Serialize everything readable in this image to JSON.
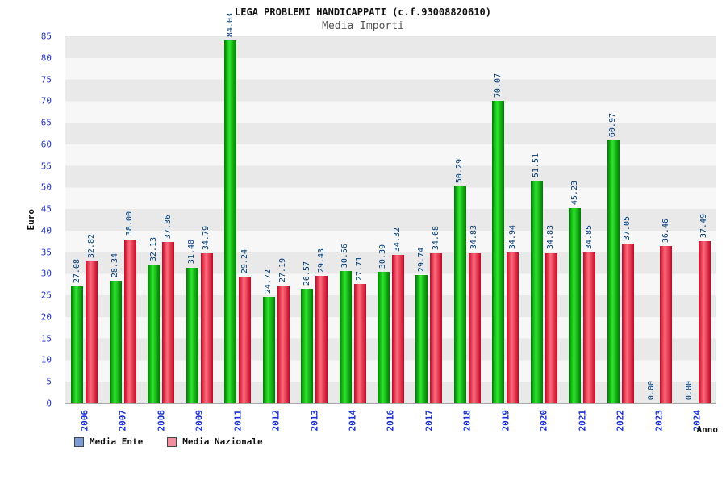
{
  "page": {
    "title": "LEGA PROBLEMI HANDICAPPATI (c.f.93008820610)",
    "subtitle": "Media Importi"
  },
  "chart_data": {
    "type": "bar",
    "title": "LEGA PROBLEMI HANDICAPPATI (c.f.93008820610)",
    "subtitle": "Media Importi",
    "xlabel": "Anno",
    "ylabel": "Euro",
    "ylim": [
      0,
      85
    ],
    "ytick_step": 5,
    "grid": "horizontal-bands",
    "legend_position": "bottom-left",
    "categories": [
      "2006",
      "2007",
      "2008",
      "2009",
      "2011",
      "2012",
      "2013",
      "2014",
      "2016",
      "2017",
      "2018",
      "2019",
      "2020",
      "2021",
      "2022",
      "2023",
      "2024"
    ],
    "series": [
      {
        "name": "Media Ente",
        "values": [
          27.08,
          28.34,
          32.13,
          31.48,
          84.03,
          24.72,
          26.57,
          30.56,
          30.39,
          29.74,
          50.29,
          70.07,
          51.51,
          45.23,
          60.97,
          0.0,
          0.0
        ],
        "bar_center_color": "#2ee62e",
        "bar_edge_color": "#007a00",
        "legend_swatch_color": "#7a9cd6"
      },
      {
        "name": "Media Nazionale",
        "values": [
          32.82,
          38.0,
          37.36,
          34.79,
          29.24,
          27.19,
          29.43,
          27.71,
          34.32,
          34.68,
          34.83,
          34.94,
          34.83,
          34.85,
          37.05,
          36.46,
          37.49
        ],
        "bar_center_color": "#ff6b7c",
        "bar_edge_color": "#c00824",
        "legend_swatch_color": "#ef8fa0"
      }
    ]
  },
  "colors": {
    "value_label": "#003b77",
    "axis_tick_label": "#2431c8",
    "year_label": "#1a2fd4",
    "subtitle_text": "#555555",
    "band_dark": "#e9e9e9",
    "band_light": "#f7f7f7"
  }
}
